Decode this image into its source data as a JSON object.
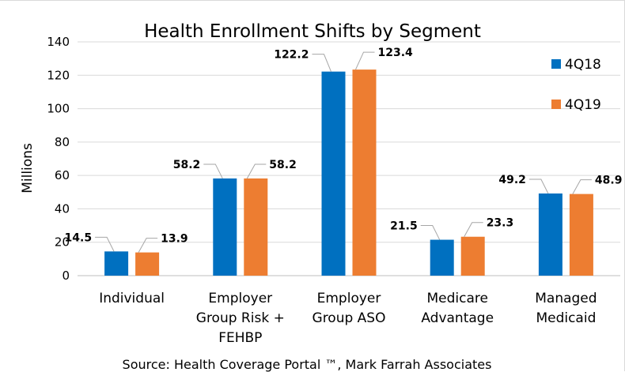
{
  "chart_data": {
    "type": "bar",
    "title": "Health Enrollment Shifts by Segment",
    "ylabel": "Millions",
    "xlabel": "",
    "ylim": [
      0,
      140
    ],
    "yticks": [
      0,
      20,
      40,
      60,
      80,
      100,
      120,
      140
    ],
    "grid": true,
    "legend_position": "right",
    "categories": [
      [
        "Individual"
      ],
      [
        "Employer",
        "Group Risk +",
        "FEHBP"
      ],
      [
        "Employer",
        "Group ASO"
      ],
      [
        "Medicare",
        "Advantage"
      ],
      [
        "Managed",
        "Medicaid"
      ]
    ],
    "series": [
      {
        "name": "4Q18",
        "color": "#0070c0",
        "values": [
          14.5,
          58.2,
          122.2,
          21.5,
          49.2
        ]
      },
      {
        "name": "4Q19",
        "color": "#ed7d31",
        "values": [
          13.9,
          58.2,
          123.4,
          23.3,
          48.9
        ]
      }
    ],
    "source": "Source: Health Coverage Portal ™, Mark Farrah Associates"
  }
}
